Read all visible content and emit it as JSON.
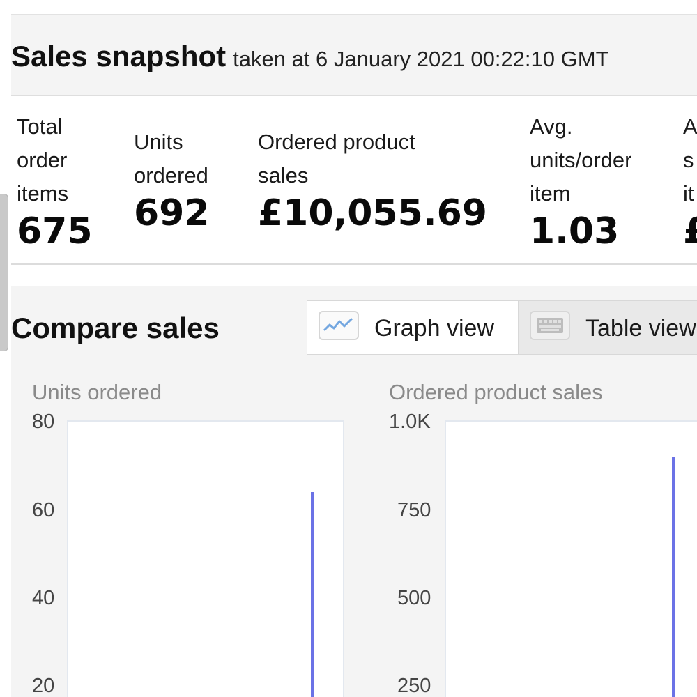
{
  "snapshot": {
    "title": "Sales snapshot",
    "taken_at": "taken at 6 January 2021 00:22:10 GMT"
  },
  "metrics": [
    {
      "label_lines": [
        "Total",
        "order",
        "items"
      ],
      "value": "675"
    },
    {
      "label_lines": [
        "Units",
        "ordered"
      ],
      "value": "692"
    },
    {
      "label_lines": [
        "Ordered product",
        "sales"
      ],
      "value": "£10,055.69"
    },
    {
      "label_lines": [
        "Avg.",
        "units/order",
        "item"
      ],
      "value": "1.03"
    },
    {
      "label_lines": [
        "A",
        "s",
        "it"
      ],
      "value": "£"
    }
  ],
  "compare": {
    "title": "Compare sales",
    "graph_view_label": "Graph view",
    "table_view_label": "Table view",
    "graph_icon": "line-graph-icon",
    "table_icon": "keyboard-table-icon"
  },
  "chart_data": [
    {
      "type": "line",
      "title": "Units ordered",
      "y_ticks": [
        "80",
        "60",
        "40",
        "20"
      ],
      "ylim": [
        0,
        80
      ],
      "series": [
        {
          "values": [
            0,
            64,
            0
          ]
        }
      ],
      "color": "#6b72e6"
    },
    {
      "type": "line",
      "title": "Ordered product sales",
      "y_ticks": [
        "1.0K",
        "750",
        "500",
        "250"
      ],
      "ylim": [
        0,
        1000
      ],
      "series": [
        {
          "values": [
            0,
            900,
            0
          ]
        }
      ],
      "color": "#6b72e6"
    }
  ]
}
